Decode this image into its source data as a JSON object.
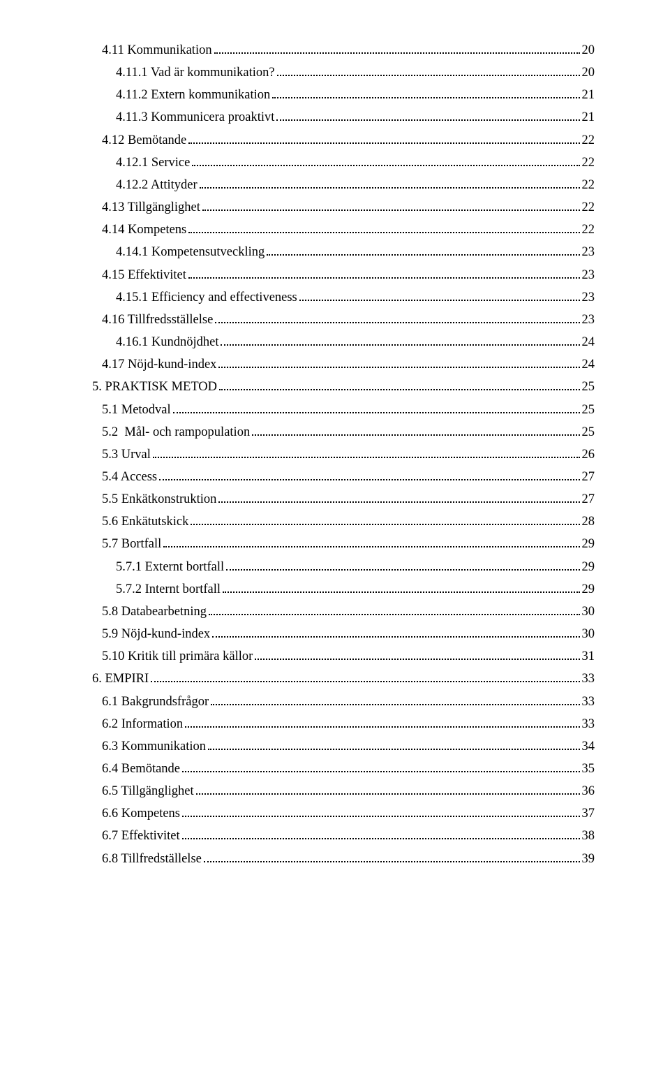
{
  "toc": [
    {
      "indent": 0,
      "title": "4.11 Kommunikation",
      "page": "20"
    },
    {
      "indent": 1,
      "title": "4.11.1 Vad är kommunikation?",
      "page": "20"
    },
    {
      "indent": 1,
      "title": "4.11.2 Extern kommunikation",
      "page": "21"
    },
    {
      "indent": 1,
      "title": "4.11.3 Kommunicera proaktivt",
      "page": "21"
    },
    {
      "indent": 0,
      "title": "4.12 Bemötande",
      "page": "22"
    },
    {
      "indent": 1,
      "title": "4.12.1 Service",
      "page": "22"
    },
    {
      "indent": 1,
      "title": "4.12.2 Attityder",
      "page": "22"
    },
    {
      "indent": 0,
      "title": "4.13 Tillgänglighet",
      "page": "22"
    },
    {
      "indent": 0,
      "title": "4.14 Kompetens",
      "page": "22"
    },
    {
      "indent": 1,
      "title": "4.14.1 Kompetensutveckling",
      "page": "23"
    },
    {
      "indent": 0,
      "title": "4.15 Effektivitet",
      "page": "23"
    },
    {
      "indent": 1,
      "title": "4.15.1 Efficiency and effectiveness",
      "page": "23"
    },
    {
      "indent": 0,
      "title": "4.16 Tillfredsställelse",
      "page": "23"
    },
    {
      "indent": 1,
      "title": "4.16.1 Kundnöjdhet",
      "page": "24"
    },
    {
      "indent": 0,
      "title": "4.17 Nöjd-kund-index",
      "page": "24"
    },
    {
      "indent": 2,
      "title": "5. PRAKTISK METOD",
      "page": "25"
    },
    {
      "indent": 0,
      "title": "5.1 Metodval",
      "page": "25"
    },
    {
      "indent": 0,
      "title": "5.2  Mål- och rampopulation",
      "page": "25"
    },
    {
      "indent": 0,
      "title": "5.3 Urval",
      "page": "26"
    },
    {
      "indent": 0,
      "title": "5.4 Access",
      "page": "27"
    },
    {
      "indent": 0,
      "title": "5.5 Enkätkonstruktion",
      "page": "27"
    },
    {
      "indent": 0,
      "title": "5.6 Enkätutskick",
      "page": "28"
    },
    {
      "indent": 0,
      "title": "5.7 Bortfall",
      "page": "29"
    },
    {
      "indent": 1,
      "title": "5.7.1 Externt bortfall",
      "page": "29"
    },
    {
      "indent": 1,
      "title": "5.7.2 Internt bortfall",
      "page": "29"
    },
    {
      "indent": 0,
      "title": "5.8 Databearbetning",
      "page": "30"
    },
    {
      "indent": 0,
      "title": "5.9 Nöjd-kund-index",
      "page": "30"
    },
    {
      "indent": 0,
      "title": "5.10 Kritik till primära källor",
      "page": "31"
    },
    {
      "indent": 2,
      "title": "6. EMPIRI",
      "page": "33"
    },
    {
      "indent": 0,
      "title": "6.1 Bakgrundsfrågor",
      "page": "33"
    },
    {
      "indent": 0,
      "title": "6.2 Information",
      "page": "33"
    },
    {
      "indent": 0,
      "title": "6.3 Kommunikation",
      "page": "34"
    },
    {
      "indent": 0,
      "title": "6.4 Bemötande",
      "page": "35"
    },
    {
      "indent": 0,
      "title": "6.5 Tillgänglighet",
      "page": "36"
    },
    {
      "indent": 0,
      "title": "6.6 Kompetens",
      "page": "37"
    },
    {
      "indent": 0,
      "title": "6.7 Effektivitet",
      "page": "38"
    },
    {
      "indent": 0,
      "title": "6.8 Tillfredställelse",
      "page": "39"
    }
  ]
}
